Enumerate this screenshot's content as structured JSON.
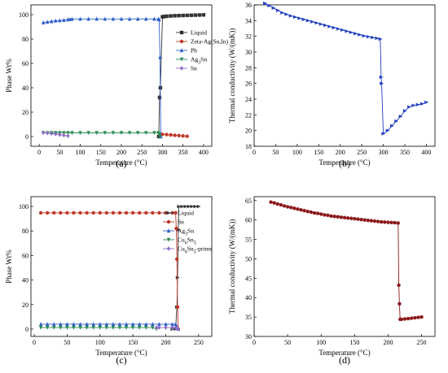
{
  "chart_data": [
    {
      "id": "a",
      "type": "line",
      "panel_label": "(a)",
      "xlabel": "Temperature (°C)",
      "ylabel": "Phase Wt%",
      "xlim": [
        -20,
        420
      ],
      "ylim": [
        -8,
        108
      ],
      "xticks": [
        0,
        50,
        100,
        150,
        200,
        250,
        300,
        350,
        400
      ],
      "yticks": [
        0,
        20,
        40,
        60,
        80,
        100
      ],
      "legend_position": "center-right",
      "series": [
        {
          "name": "Liquid",
          "color": "#333333",
          "marker": "square",
          "x": [
            291,
            293,
            295,
            300,
            305,
            310,
            320,
            330,
            340,
            350,
            360,
            370,
            380,
            390,
            400
          ],
          "y": [
            0,
            32,
            40,
            98.2,
            98.5,
            98.7,
            98.9,
            99.1,
            99.2,
            99.3,
            99.4,
            99.5,
            99.6,
            99.7,
            99.8
          ]
        },
        {
          "name": "Zeta-Ag(Sn,In)",
          "color": "#c0392b",
          "marker": "circle",
          "x": [
            295,
            300,
            310,
            320,
            330,
            340,
            350,
            360
          ],
          "y": [
            1.8,
            1.8,
            1.6,
            1.3,
            1.0,
            0.8,
            0.5,
            0.2
          ]
        },
        {
          "name": "Pb",
          "color": "#2e5fc9",
          "marker": "triangle-up",
          "x": [
            10,
            20,
            30,
            40,
            50,
            60,
            70,
            75,
            80,
            100,
            120,
            140,
            160,
            180,
            200,
            220,
            240,
            260,
            280,
            290,
            292,
            294,
            296
          ],
          "y": [
            93.5,
            94,
            94.5,
            95,
            95.2,
            95.5,
            96,
            96.3,
            96.4,
            96.5,
            96.5,
            96.5,
            96.5,
            96.5,
            96.5,
            96.5,
            96.5,
            96.5,
            96.5,
            96.4,
            96,
            65,
            0
          ]
        },
        {
          "name": "Ag3Sn",
          "color": "#2e8b57",
          "marker": "triangle-down",
          "x": [
            10,
            20,
            30,
            40,
            50,
            60,
            70,
            80,
            100,
            120,
            140,
            160,
            180,
            200,
            220,
            240,
            260,
            280,
            290,
            292,
            294
          ],
          "y": [
            3,
            3,
            3,
            3,
            3,
            3,
            3,
            3,
            3,
            3,
            3,
            3,
            3,
            3,
            3,
            3,
            3,
            3,
            3,
            2,
            0
          ]
        },
        {
          "name": "Sn",
          "color": "#8e6cc7",
          "marker": "diamond",
          "x": [
            10,
            20,
            30,
            40,
            50,
            60,
            70
          ],
          "y": [
            3.2,
            2.8,
            2.4,
            2.0,
            1.5,
            1.0,
            0.5
          ]
        }
      ]
    },
    {
      "id": "b",
      "type": "line",
      "panel_label": "(b)",
      "xlabel": "Temperature (°C)",
      "ylabel": "Thermal conductivity (W/(mK))",
      "xlim": [
        0,
        420
      ],
      "ylim": [
        18,
        36
      ],
      "xticks": [
        0,
        50,
        100,
        150,
        200,
        250,
        300,
        350,
        400
      ],
      "yticks": [
        18,
        20,
        22,
        24,
        26,
        28,
        30,
        32,
        34,
        36
      ],
      "series": [
        {
          "name": "",
          "color": "#1f3fbf",
          "marker": "triangle-right",
          "x": [
            25,
            35,
            45,
            55,
            65,
            75,
            85,
            95,
            105,
            115,
            125,
            135,
            145,
            155,
            165,
            175,
            185,
            195,
            205,
            215,
            225,
            235,
            245,
            255,
            265,
            275,
            285,
            293,
            295,
            296,
            300,
            310,
            320,
            330,
            340,
            350,
            360,
            370,
            380,
            390,
            400
          ],
          "y": [
            36.2,
            35.9,
            35.6,
            35.3,
            35.0,
            34.8,
            34.6,
            34.45,
            34.3,
            34.15,
            34.0,
            33.85,
            33.7,
            33.55,
            33.4,
            33.25,
            33.1,
            32.95,
            32.8,
            32.65,
            32.5,
            32.35,
            32.2,
            32.05,
            31.95,
            31.85,
            31.75,
            31.65,
            26.8,
            26.0,
            19.6,
            20.0,
            20.6,
            21.2,
            21.8,
            22.5,
            23.0,
            23.2,
            23.3,
            23.4,
            23.6
          ]
        }
      ]
    },
    {
      "id": "c",
      "type": "line",
      "panel_label": "(c)",
      "xlabel": "Temperature (°C)",
      "ylabel": "Phase Wt%",
      "xlim": [
        -5,
        270
      ],
      "ylim": [
        -6,
        108
      ],
      "xticks": [
        0,
        50,
        100,
        150,
        200,
        250
      ],
      "yticks": [
        0,
        20,
        40,
        60,
        80,
        100
      ],
      "legend_position": "center-right",
      "series": [
        {
          "name": "Liquid",
          "color": "#333333",
          "marker": "triangle-right",
          "x": [
            210,
            215,
            217,
            218,
            219,
            220,
            225,
            230,
            235,
            240,
            245,
            250
          ],
          "y": [
            0,
            0,
            18,
            42,
            81,
            100,
            100,
            100,
            100,
            100,
            100,
            100
          ]
        },
        {
          "name": "Sn",
          "color": "#c0392b",
          "marker": "circle",
          "x": [
            10,
            20,
            30,
            40,
            50,
            60,
            70,
            80,
            90,
            100,
            110,
            120,
            130,
            140,
            150,
            160,
            170,
            180,
            190,
            200,
            210,
            215,
            216,
            217,
            218,
            219
          ],
          "y": [
            94.8,
            94.8,
            94.8,
            94.8,
            94.8,
            94.8,
            94.8,
            94.8,
            94.8,
            94.8,
            94.8,
            94.8,
            94.8,
            94.8,
            94.8,
            94.8,
            94.8,
            94.8,
            94.8,
            94.8,
            94.8,
            94.8,
            82,
            57,
            18,
            0
          ]
        },
        {
          "name": "Ag3Sn",
          "color": "#2e5fc9",
          "marker": "triangle-up",
          "x": [
            10,
            20,
            30,
            40,
            50,
            60,
            70,
            80,
            90,
            100,
            110,
            120,
            130,
            140,
            150,
            160,
            170,
            180,
            190,
            200,
            210,
            215,
            217,
            219
          ],
          "y": [
            4,
            4,
            4,
            4,
            4,
            4,
            4,
            4,
            4,
            4,
            4,
            4,
            4,
            4,
            4,
            4,
            4,
            4,
            4,
            4,
            4,
            4,
            2,
            0
          ]
        },
        {
          "name": "Cu6Sn5",
          "color": "#2e8b57",
          "marker": "triangle-down",
          "x": [
            10,
            20,
            30,
            40,
            50,
            60,
            70,
            80,
            90,
            100,
            110,
            120,
            130,
            140,
            150,
            160,
            170,
            180,
            186
          ],
          "y": [
            1.2,
            1.2,
            1.2,
            1.2,
            1.2,
            1.2,
            1.2,
            1.2,
            1.2,
            1.2,
            1.2,
            1.2,
            1.2,
            1.2,
            1.2,
            1.2,
            1.2,
            1.2,
            0
          ]
        },
        {
          "name": "Cu6Sn5-prime",
          "color": "#8e6cc7",
          "marker": "diamond",
          "x": [
            186,
            190,
            200,
            210,
            215,
            217,
            219
          ],
          "y": [
            1.2,
            1.2,
            1.2,
            1.2,
            1.2,
            0.8,
            0
          ]
        }
      ]
    },
    {
      "id": "d",
      "type": "line",
      "panel_label": "(d)",
      "xlabel": "Temperature (°C)",
      "ylabel": "Thermal conductivity (W/(mK))",
      "xlim": [
        0,
        270
      ],
      "ylim": [
        30,
        66
      ],
      "xticks": [
        0,
        50,
        100,
        150,
        200,
        250
      ],
      "yticks": [
        30,
        35,
        40,
        45,
        50,
        55,
        60,
        65
      ],
      "series": [
        {
          "name": "",
          "color": "#8b1a1a",
          "marker": "circle",
          "x": [
            25,
            30,
            35,
            40,
            45,
            50,
            55,
            60,
            65,
            70,
            75,
            80,
            85,
            90,
            95,
            100,
            105,
            110,
            115,
            120,
            125,
            130,
            135,
            140,
            145,
            150,
            155,
            160,
            165,
            170,
            175,
            180,
            185,
            190,
            195,
            200,
            205,
            210,
            215,
            216,
            217,
            218,
            220,
            225,
            230,
            235,
            240,
            245,
            250
          ],
          "y": [
            64.6,
            64.4,
            64.1,
            63.9,
            63.6,
            63.4,
            63.2,
            63.0,
            62.8,
            62.6,
            62.4,
            62.2,
            62.0,
            61.8,
            61.7,
            61.5,
            61.3,
            61.2,
            61.0,
            60.9,
            60.8,
            60.7,
            60.6,
            60.5,
            60.4,
            60.3,
            60.2,
            60.1,
            60.0,
            59.9,
            59.8,
            59.7,
            59.6,
            59.5,
            59.45,
            59.4,
            59.35,
            59.3,
            59.2,
            43.2,
            38.4,
            34.4,
            34.4,
            34.5,
            34.6,
            34.7,
            34.8,
            34.9,
            35.0
          ]
        }
      ]
    }
  ]
}
